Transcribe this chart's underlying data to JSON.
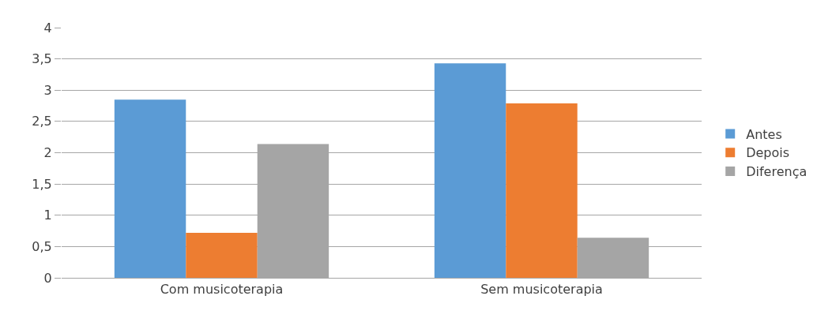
{
  "chart_data": {
    "type": "bar",
    "categories": [
      "Com musicoterapia",
      "Sem musicoterapia"
    ],
    "series": [
      {
        "name": "Antes",
        "color": "#5b9bd5",
        "values": [
          2.85,
          3.43
        ]
      },
      {
        "name": "Depois",
        "color": "#ed7d31",
        "values": [
          0.72,
          2.79
        ]
      },
      {
        "name": "Diferença",
        "color": "#a5a5a5",
        "values": [
          2.14,
          0.64
        ]
      }
    ],
    "ylim": [
      0,
      4
    ],
    "yticks": [
      0,
      {
        "value": 0.5,
        "label": "0,5"
      },
      1,
      {
        "value": 1.5,
        "label": "1,5"
      },
      2,
      {
        "value": 2.5,
        "label": "2,5"
      },
      3,
      {
        "value": 3.5,
        "label": "3,5"
      },
      4
    ],
    "grid": "y",
    "legend": "right"
  }
}
